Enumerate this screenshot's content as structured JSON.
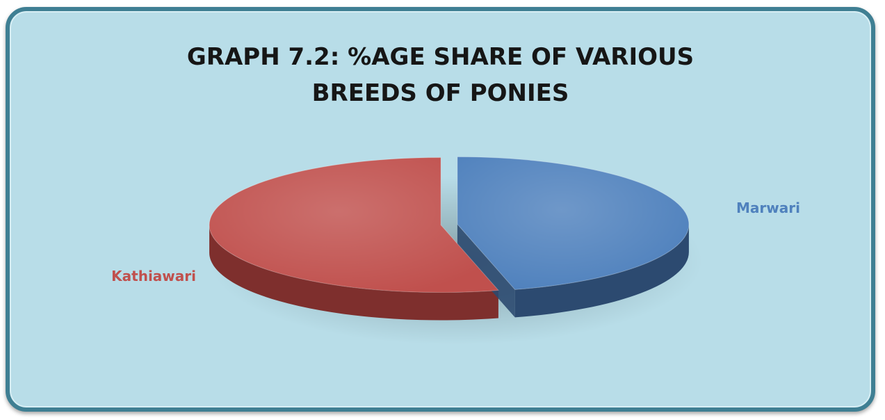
{
  "chart_data": {
    "type": "pie",
    "title_lines": [
      "GRAPH 7.2: %AGE SHARE OF VARIOUS",
      "BREEDS OF PONIES"
    ],
    "slices": [
      {
        "label": "Marwari",
        "value": 46,
        "color": "#4f81bd",
        "side_color": "#2c4a70"
      },
      {
        "label": "Kathiawari",
        "value": 54,
        "color": "#c0504d",
        "side_color": "#7e2f2d"
      }
    ],
    "legend": "none",
    "data_labels": "category names outside"
  }
}
